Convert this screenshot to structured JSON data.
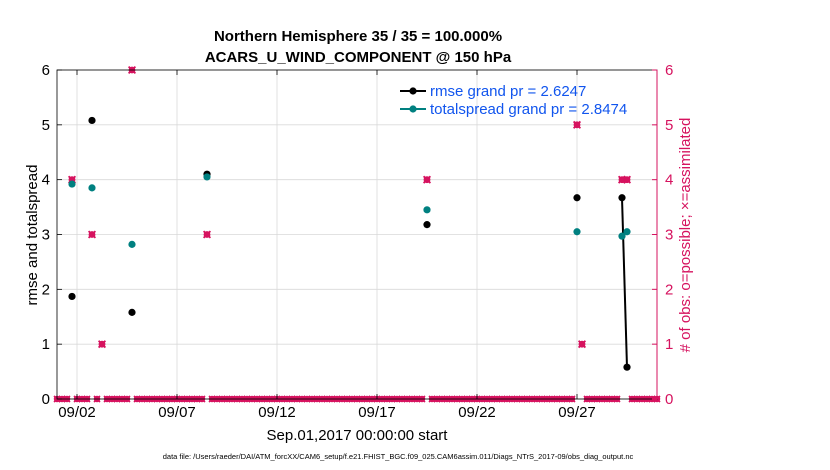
{
  "chart_data": {
    "type": "scatter",
    "title_line1": "Northern Hemisphere 35 / 35 = 100.000%",
    "title_line2": "ACARS_U_WIND_COMPONENT @ 150 hPa",
    "xlabel": "Sep.01,2017 00:00:00 start",
    "ylabel_left": "rmse and totalspread",
    "ylabel_right": "# of obs: o=possible; ×=assimilated",
    "xlim": [
      0,
      30
    ],
    "ylim_left": [
      0,
      6
    ],
    "ylim_right": [
      0,
      6
    ],
    "x_ticks": [
      {
        "x": 1,
        "label": "09/02"
      },
      {
        "x": 6,
        "label": "09/07"
      },
      {
        "x": 11,
        "label": "09/12"
      },
      {
        "x": 16,
        "label": "09/17"
      },
      {
        "x": 21,
        "label": "09/22"
      },
      {
        "x": 26,
        "label": "09/27"
      }
    ],
    "y_ticks_left": [
      "0",
      "1",
      "2",
      "3",
      "4",
      "5",
      "6"
    ],
    "y_ticks_right": [
      "0",
      "1",
      "2",
      "3",
      "4",
      "5",
      "6"
    ],
    "grid": true,
    "colors": {
      "rmse": "#000000",
      "spread": "#008080",
      "obs": "#d6135f",
      "grid": "#d9d9d9",
      "legend_text": "#1155ee"
    },
    "series": [
      {
        "name": "rmse",
        "legend_label": "rmse grand pr = 2.6247",
        "points": [
          [
            0.75,
            1.87
          ],
          [
            1.75,
            5.08
          ],
          [
            3.75,
            1.58
          ],
          [
            7.5,
            4.1
          ],
          [
            18.5,
            3.18
          ],
          [
            26.0,
            3.67
          ],
          [
            28.25,
            3.67
          ],
          [
            28.5,
            0.58
          ]
        ],
        "connected_segment": [
          [
            28.25,
            3.67
          ],
          [
            28.5,
            0.58
          ]
        ]
      },
      {
        "name": "totalspread",
        "legend_label": "totalspread grand pr = 2.8474",
        "points": [
          [
            0.75,
            3.92
          ],
          [
            1.75,
            3.85
          ],
          [
            3.75,
            2.82
          ],
          [
            7.5,
            4.05
          ],
          [
            18.5,
            3.45
          ],
          [
            26.0,
            3.05
          ],
          [
            28.25,
            2.97
          ],
          [
            28.5,
            3.05
          ]
        ]
      },
      {
        "name": "obs_possible",
        "points": [
          [
            0.75,
            4
          ],
          [
            1.75,
            3
          ],
          [
            2.25,
            1
          ],
          [
            3.75,
            6
          ],
          [
            7.5,
            3
          ],
          [
            18.5,
            4
          ],
          [
            26.0,
            5
          ],
          [
            26.25,
            1
          ],
          [
            28.25,
            4
          ],
          [
            28.5,
            4
          ]
        ]
      },
      {
        "name": "obs_assimilated",
        "points": [
          [
            0.75,
            4
          ],
          [
            1.75,
            3
          ],
          [
            2.25,
            1
          ],
          [
            3.75,
            6
          ],
          [
            7.5,
            3
          ],
          [
            18.5,
            4
          ],
          [
            26.0,
            5
          ],
          [
            26.25,
            1
          ],
          [
            28.25,
            4
          ],
          [
            28.5,
            4
          ]
        ]
      }
    ]
  },
  "footer": {
    "datafile": "data file: /Users/raeder/DAI/ATM_forcXX/CAM6_setup/f.e21.FHIST_BGC.f09_025.CAM6assim.011/Diags_NTrS_2017-09/obs_diag_output.nc"
  }
}
